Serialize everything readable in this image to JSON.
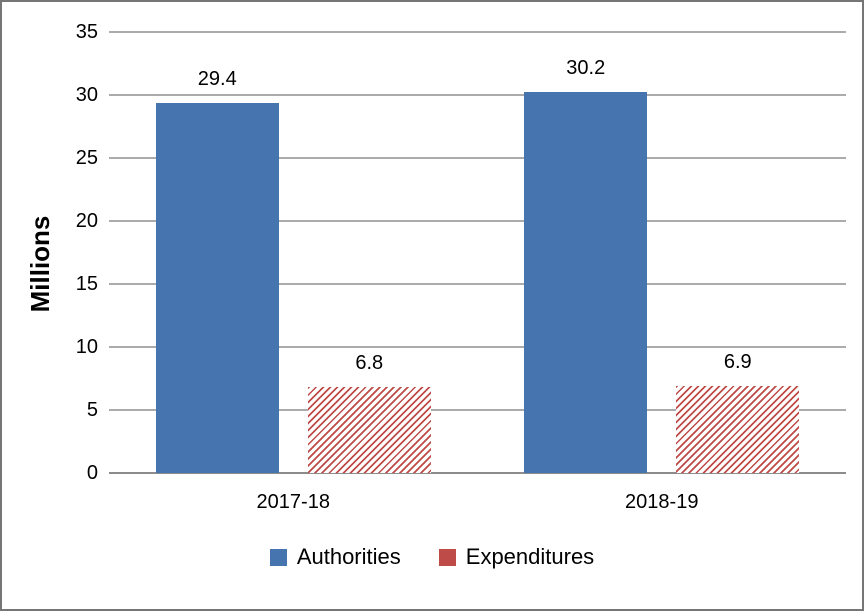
{
  "chart_data": {
    "type": "bar",
    "categories": [
      "2017-18",
      "2018-19"
    ],
    "series": [
      {
        "name": "Authorities",
        "values": [
          29.4,
          30.2
        ],
        "color": "#4674AE",
        "fill": "solid"
      },
      {
        "name": "Expenditures",
        "values": [
          6.8,
          6.9
        ],
        "color": "#BE4B48",
        "fill": "diagonal-hatch"
      }
    ],
    "title": "",
    "xlabel": "",
    "ylabel": "Millions",
    "ylim": [
      0,
      35
    ],
    "yticks": [
      0,
      5,
      10,
      15,
      20,
      25,
      30,
      35
    ],
    "grid": true,
    "value_labels": [
      "29.4",
      "6.8",
      "30.2",
      "6.9"
    ],
    "legend_position": "bottom"
  },
  "colors": {
    "gridline": "#ABABAB",
    "axis_line": "#8C8C8C",
    "border": "#767676",
    "text": "#000000",
    "background": "#ffffff"
  }
}
